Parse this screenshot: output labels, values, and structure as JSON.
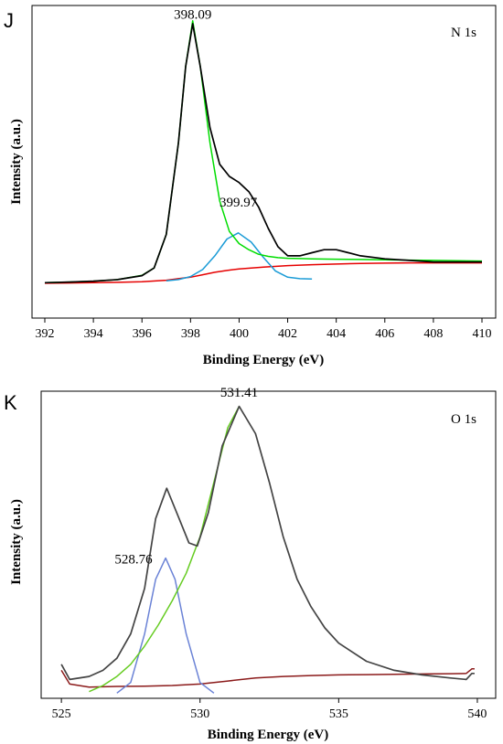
{
  "chart_data": [
    {
      "type": "line",
      "panel_label": "J",
      "region_label": "N 1s",
      "xlabel": "Binding Energy (eV)",
      "ylabel": "Intensity (a.u.)",
      "xlim": [
        392,
        410
      ],
      "ylim": [
        0,
        1
      ],
      "xticks": [
        392,
        394,
        396,
        398,
        400,
        402,
        404,
        406,
        408,
        410
      ],
      "colors": {
        "raw": "#000000",
        "fit": "#00dd00",
        "component": "#1a9bd6",
        "background": "#e60000"
      },
      "peak_labels": [
        {
          "text": "398.09",
          "x": 398.09,
          "y": 0.945
        },
        {
          "text": "399.97",
          "x": 399.97,
          "y": 0.33
        }
      ],
      "series": [
        {
          "role": "raw",
          "x": [
            392,
            393,
            394,
            395,
            396,
            396.5,
            397,
            397.5,
            397.8,
            398.09,
            398.4,
            398.8,
            399.2,
            399.6,
            400,
            400.4,
            400.8,
            401.2,
            401.6,
            402,
            402.5,
            403,
            403.5,
            404,
            404.5,
            405,
            406,
            407,
            408,
            409,
            410
          ],
          "y": [
            0.092,
            0.094,
            0.097,
            0.102,
            0.115,
            0.14,
            0.25,
            0.55,
            0.8,
            0.94,
            0.8,
            0.6,
            0.48,
            0.44,
            0.42,
            0.39,
            0.34,
            0.27,
            0.21,
            0.18,
            0.18,
            0.19,
            0.2,
            0.2,
            0.19,
            0.18,
            0.17,
            0.165,
            0.16,
            0.16,
            0.16
          ]
        },
        {
          "role": "fit",
          "x": [
            392,
            393,
            394,
            395,
            396,
            396.5,
            397,
            397.5,
            397.8,
            398.09,
            398.4,
            398.8,
            399.2,
            399.6,
            400,
            400.4,
            400.8,
            401.2,
            401.6,
            402,
            402.5,
            403,
            404,
            405,
            406,
            407,
            408,
            409,
            410
          ],
          "y": [
            0.092,
            0.094,
            0.097,
            0.102,
            0.116,
            0.14,
            0.25,
            0.55,
            0.8,
            0.95,
            0.8,
            0.55,
            0.36,
            0.26,
            0.22,
            0.2,
            0.185,
            0.178,
            0.174,
            0.172,
            0.171,
            0.17,
            0.169,
            0.168,
            0.167,
            0.166,
            0.165,
            0.164,
            0.163
          ]
        },
        {
          "role": "component",
          "x": [
            397,
            397.5,
            398,
            398.5,
            399,
            399.5,
            399.97,
            400.5,
            401,
            401.5,
            402,
            402.5,
            403
          ],
          "y": [
            0.098,
            0.102,
            0.112,
            0.135,
            0.18,
            0.235,
            0.255,
            0.225,
            0.175,
            0.13,
            0.11,
            0.105,
            0.104
          ]
        },
        {
          "role": "background",
          "x": [
            392,
            393,
            394,
            395,
            396,
            397,
            397.5,
            398,
            398.5,
            399,
            399.5,
            400,
            401,
            402,
            403,
            404,
            405,
            406,
            407,
            408,
            409,
            410
          ],
          "y": [
            0.09,
            0.091,
            0.092,
            0.093,
            0.095,
            0.1,
            0.105,
            0.11,
            0.118,
            0.126,
            0.132,
            0.137,
            0.143,
            0.148,
            0.151,
            0.153,
            0.155,
            0.156,
            0.157,
            0.157,
            0.157,
            0.157
          ]
        }
      ]
    },
    {
      "type": "line",
      "panel_label": "K",
      "region_label": "O 1s",
      "xlabel": "Binding Energy (eV)",
      "ylabel": "Intensity (a.u.)",
      "xlim": [
        524.6,
        540.2
      ],
      "ylim": [
        0,
        1
      ],
      "xticks": [
        525,
        530,
        535,
        540
      ],
      "colors": {
        "raw": "#444444",
        "fit": "#66cc22",
        "component": "#6a82d6",
        "background": "#8b1a1a"
      },
      "peak_labels": [
        {
          "text": "531.41",
          "x": 531.41,
          "y": 0.97
        },
        {
          "text": "528.76",
          "x": 527.6,
          "y": 0.42
        }
      ],
      "series": [
        {
          "role": "raw",
          "x": [
            525,
            525.3,
            526,
            526.5,
            527,
            527.5,
            528,
            528.4,
            528.8,
            529.2,
            529.6,
            529.9,
            530.3,
            530.8,
            531.41,
            532,
            532.5,
            533,
            533.5,
            534,
            534.5,
            535,
            536,
            537,
            538,
            539,
            539.6,
            539.8,
            539.9
          ],
          "y": [
            0.1,
            0.05,
            0.06,
            0.08,
            0.12,
            0.2,
            0.35,
            0.58,
            0.68,
            0.59,
            0.5,
            0.49,
            0.6,
            0.82,
            0.95,
            0.86,
            0.7,
            0.52,
            0.38,
            0.29,
            0.22,
            0.17,
            0.11,
            0.08,
            0.065,
            0.055,
            0.05,
            0.07,
            0.07
          ]
        },
        {
          "role": "fit",
          "x": [
            526,
            526.5,
            527,
            527.5,
            528,
            528.5,
            529,
            529.5,
            530,
            530.5,
            531,
            531.41
          ],
          "y": [
            0.01,
            0.03,
            0.06,
            0.1,
            0.16,
            0.23,
            0.31,
            0.4,
            0.52,
            0.7,
            0.88,
            0.95
          ]
        },
        {
          "role": "component",
          "x": [
            527,
            527.5,
            528,
            528.4,
            528.76,
            529.1,
            529.5,
            530,
            530.5
          ],
          "y": [
            0.005,
            0.04,
            0.2,
            0.38,
            0.45,
            0.38,
            0.2,
            0.04,
            0.005
          ]
        },
        {
          "role": "background",
          "x": [
            525,
            525.3,
            526,
            527,
            528,
            529,
            530,
            531,
            532,
            533,
            534,
            535,
            536,
            537,
            538,
            539,
            539.6,
            539.8,
            539.9
          ],
          "y": [
            0.08,
            0.035,
            0.025,
            0.027,
            0.028,
            0.03,
            0.035,
            0.045,
            0.055,
            0.06,
            0.063,
            0.065,
            0.066,
            0.067,
            0.068,
            0.069,
            0.07,
            0.085,
            0.085
          ]
        }
      ]
    }
  ]
}
